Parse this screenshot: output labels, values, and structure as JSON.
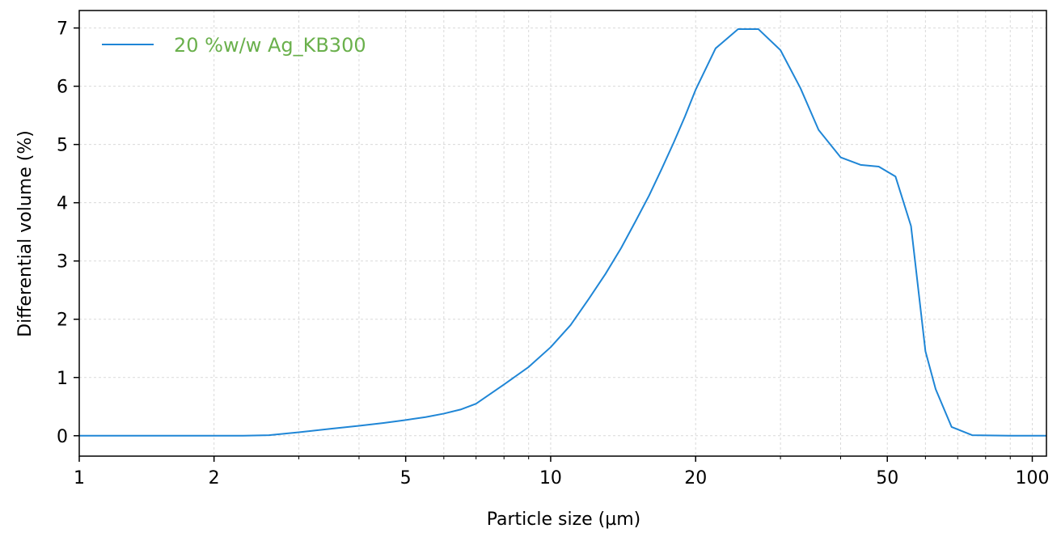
{
  "chart_data": {
    "type": "line",
    "title": "",
    "xlabel": "Particle size (µm)",
    "ylabel": "Differential volume (%)",
    "xscale": "log",
    "xlim": [
      1.05,
      107
    ],
    "ylim": [
      -0.35,
      7.3
    ],
    "xticks": [
      {
        "value": 1,
        "label": "1"
      },
      {
        "value": 2,
        "label": "2"
      },
      {
        "value": 5,
        "label": "5"
      },
      {
        "value": 10,
        "label": "10"
      },
      {
        "value": 20,
        "label": "20"
      },
      {
        "value": 50,
        "label": "50"
      },
      {
        "value": 100,
        "label": "100"
      }
    ],
    "yticks": [
      {
        "value": 0,
        "label": "0"
      },
      {
        "value": 1,
        "label": "1"
      },
      {
        "value": 2,
        "label": "2"
      },
      {
        "value": 3,
        "label": "3"
      },
      {
        "value": 4,
        "label": "4"
      },
      {
        "value": 5,
        "label": "5"
      },
      {
        "value": 6,
        "label": "6"
      },
      {
        "value": 7,
        "label": "7"
      }
    ],
    "grid": true,
    "legend_position": "top-left",
    "series": [
      {
        "name": "20 %w/w Ag_KB300",
        "color": "#1f86d6",
        "legend_text_color": "#6ab04c",
        "x": [
          1.05,
          1.5,
          2.0,
          2.3,
          2.6,
          3.0,
          3.5,
          4.0,
          4.5,
          5.0,
          5.5,
          6.0,
          6.5,
          7.0,
          8.0,
          9.0,
          10.0,
          11.0,
          12.0,
          13.0,
          14.0,
          15.0,
          16.0,
          17.0,
          18.0,
          19.0,
          20.0,
          22.0,
          24.5,
          27.0,
          30.0,
          33.0,
          36.0,
          40.0,
          44.0,
          48.0,
          52.0,
          56.0,
          60.0,
          63.0,
          68.0,
          75.0,
          90.0,
          107.0
        ],
        "y": [
          0.0,
          0.0,
          0.0,
          0.0,
          0.01,
          0.06,
          0.12,
          0.17,
          0.22,
          0.27,
          0.32,
          0.38,
          0.45,
          0.55,
          0.88,
          1.18,
          1.52,
          1.9,
          2.35,
          2.78,
          3.22,
          3.68,
          4.12,
          4.58,
          5.03,
          5.48,
          5.94,
          6.65,
          6.98,
          6.98,
          6.62,
          5.97,
          5.25,
          4.78,
          4.65,
          4.62,
          4.45,
          3.6,
          1.45,
          0.8,
          0.15,
          0.01,
          0.0,
          0.0
        ]
      }
    ]
  }
}
